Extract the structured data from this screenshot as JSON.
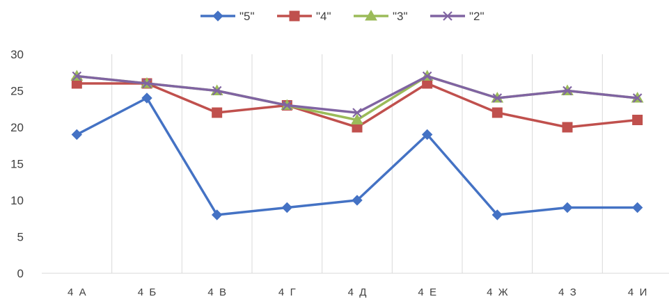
{
  "chart_data": {
    "type": "line",
    "categories": [
      "4  А",
      "4  Б",
      "4  В",
      "4  Г",
      "4  Д",
      "4  Е",
      "4  Ж",
      "4  З",
      "4  И"
    ],
    "series": [
      {
        "name": "\"5\"",
        "color": "#4472C4",
        "marker": "diamond",
        "values": [
          19,
          24,
          8,
          9,
          10,
          19,
          8,
          9,
          9
        ]
      },
      {
        "name": "\"4\"",
        "color": "#C0504D",
        "marker": "square",
        "values": [
          26,
          26,
          22,
          23,
          20,
          26,
          22,
          20,
          21
        ]
      },
      {
        "name": "\"3\"",
        "color": "#9BBB59",
        "marker": "triangle",
        "values": [
          27,
          26,
          25,
          23,
          21,
          27,
          24,
          25,
          24
        ]
      },
      {
        "name": "\"2\"",
        "color": "#8064A2",
        "marker": "x",
        "values": [
          27,
          26,
          25,
          23,
          22,
          27,
          24,
          25,
          24
        ]
      }
    ],
    "ylim": [
      0,
      30
    ],
    "yticks": [
      0,
      5,
      10,
      15,
      20,
      25,
      30
    ],
    "grid": "vertical",
    "legend": "top",
    "title": "",
    "xlabel": "",
    "ylabel": ""
  }
}
